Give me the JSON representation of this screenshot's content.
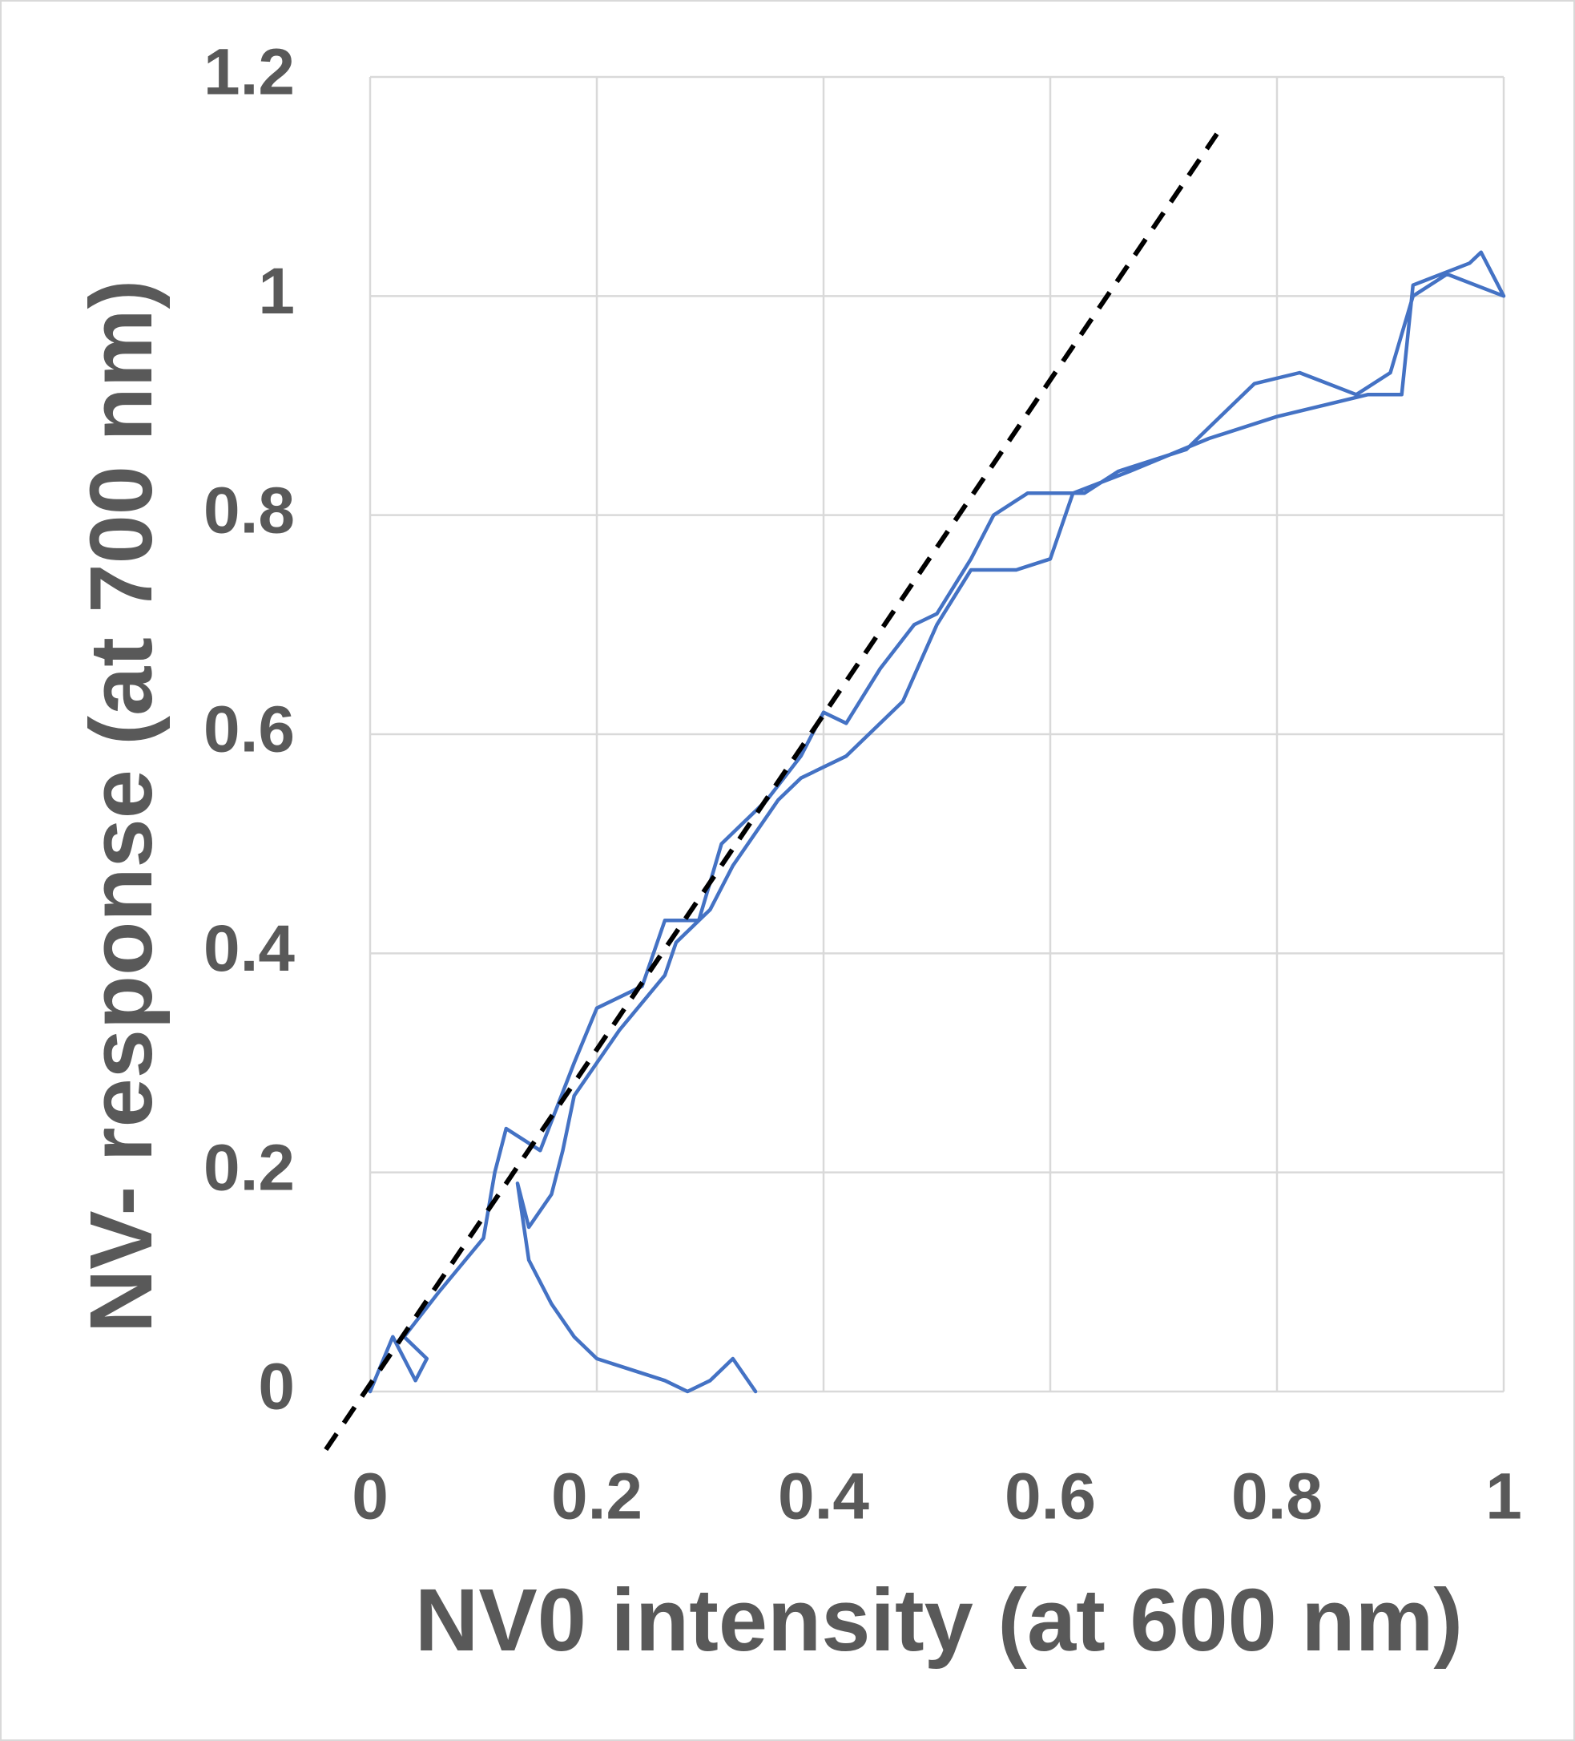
{
  "chart_data": {
    "type": "line",
    "xlabel": "NV0 intensity (at 600 nm)",
    "ylabel": "NV- response (at 700 nm)",
    "xlim": [
      0,
      1
    ],
    "ylim": [
      0,
      1.2
    ],
    "xticks": [
      0,
      0.2,
      0.4,
      0.6,
      0.8,
      1
    ],
    "yticks": [
      0,
      0.2,
      0.4,
      0.6,
      0.8,
      1,
      1.2
    ],
    "grid": true,
    "series": [
      {
        "color": "#4472c4",
        "style": "solid",
        "x": [
          0,
          0.02,
          0.04,
          0.05,
          0.03,
          0.06,
          0.1,
          0.11,
          0.12,
          0.15,
          0.18,
          0.2,
          0.24,
          0.26,
          0.29,
          0.31,
          0.35,
          0.38,
          0.4,
          0.42,
          0.45,
          0.48,
          0.5,
          0.53,
          0.55,
          0.58,
          0.63,
          0.66,
          0.72,
          0.78,
          0.82,
          0.87,
          0.9,
          0.92,
          0.95,
          1.0,
          0.98,
          0.97,
          0.92,
          0.91,
          0.88,
          0.8,
          0.74,
          0.67,
          0.62,
          0.6,
          0.57,
          0.53,
          0.5,
          0.47,
          0.42,
          0.38,
          0.36,
          0.32,
          0.3,
          0.27,
          0.26,
          0.22,
          0.2,
          0.18,
          0.17,
          0.16,
          0.14,
          0.13,
          0.14,
          0.16,
          0.18,
          0.2,
          0.23,
          0.26,
          0.28,
          0.3,
          0.32,
          0.34
        ],
        "values": [
          0.0,
          0.05,
          0.01,
          0.03,
          0.05,
          0.09,
          0.14,
          0.2,
          0.24,
          0.22,
          0.3,
          0.35,
          0.37,
          0.43,
          0.43,
          0.5,
          0.54,
          0.58,
          0.62,
          0.61,
          0.66,
          0.7,
          0.71,
          0.76,
          0.8,
          0.82,
          0.82,
          0.84,
          0.86,
          0.92,
          0.93,
          0.91,
          0.93,
          1.0,
          1.02,
          1.0,
          1.04,
          1.03,
          1.01,
          0.91,
          0.91,
          0.89,
          0.87,
          0.84,
          0.82,
          0.76,
          0.75,
          0.75,
          0.7,
          0.63,
          0.58,
          0.56,
          0.54,
          0.48,
          0.44,
          0.41,
          0.38,
          0.33,
          0.3,
          0.27,
          0.22,
          0.18,
          0.15,
          0.19,
          0.12,
          0.08,
          0.05,
          0.03,
          0.02,
          0.01,
          0.0,
          0.01,
          0.03,
          0.0
        ]
      },
      {
        "color": "#000000",
        "style": "dashed",
        "x": [
          -0.039,
          0.747
        ],
        "values": [
          -0.053,
          1.148
        ]
      }
    ]
  }
}
